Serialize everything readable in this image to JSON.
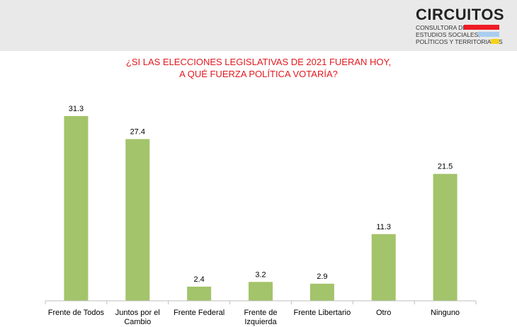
{
  "header": {
    "logo_title": "CIRCUITOS",
    "logo_lines": [
      "CONSULTORA DE",
      "ESTUDIOS SOCIALES,",
      "POLÍTICOS Y TERRITORIALES"
    ],
    "logo_colors": [
      "#ee1c25",
      "#a9cdf0",
      "#f5d21a"
    ]
  },
  "colors": {
    "bar": "#a3c46a",
    "title": "#e0191f",
    "axis": "#bfbfbf"
  },
  "chart_data": {
    "type": "bar",
    "title_lines": [
      "¿SI LAS ELECCIONES LEGISLATIVAS DE 2021 FUERAN HOY,",
      "A QUÉ FUERZA POLÍTICA VOTARÍA?"
    ],
    "categories": [
      [
        "Frente de Todos"
      ],
      [
        "Juntos por el",
        "Cambio"
      ],
      [
        "Frente Federal"
      ],
      [
        "Frente de",
        "Izquierda"
      ],
      [
        "Frente Libertario"
      ],
      [
        "Otro"
      ],
      [
        "Ninguno"
      ]
    ],
    "values": [
      31.3,
      27.4,
      2.4,
      3.2,
      2.9,
      11.3,
      21.5
    ],
    "value_labels": [
      "31.3",
      "27.4",
      "2.4",
      "3.2",
      "2.9",
      "11.3",
      "21.5"
    ],
    "ylim": [
      0,
      35
    ],
    "grid": false,
    "legend": "none"
  }
}
